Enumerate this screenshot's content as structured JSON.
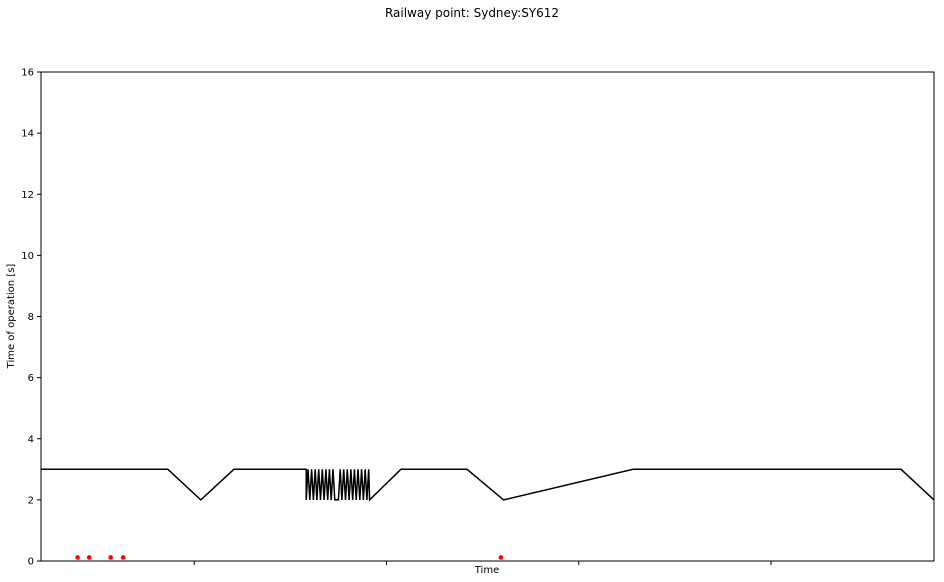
{
  "chart_data": {
    "type": "line",
    "title": "Railway point: Sydney:SY612",
    "xlabel": "Time",
    "ylabel": "Time of operation [s]",
    "ylim": [
      0,
      16
    ],
    "yticks": [
      "0",
      "2",
      "4",
      "6",
      "8",
      "10",
      "12",
      "14",
      "16"
    ],
    "xlim": [
      0,
      1
    ],
    "xticks_count": 4,
    "xtick_labels_visible": false,
    "grid": false,
    "legend": "none",
    "colors": {
      "line": "#000000",
      "markers": "#ff0000"
    },
    "series": [
      {
        "kind": "line",
        "x": [
          0.0,
          0.142,
          0.179,
          0.216,
          0.297,
          0.297,
          0.299,
          0.301,
          0.303,
          0.305,
          0.307,
          0.309,
          0.311,
          0.313,
          0.315,
          0.317,
          0.319,
          0.321,
          0.323,
          0.325,
          0.327,
          0.329,
          0.331,
          0.333,
          0.335,
          0.337,
          0.339,
          0.341,
          0.343,
          0.345,
          0.347,
          0.349,
          0.351,
          0.353,
          0.355,
          0.357,
          0.359,
          0.361,
          0.363,
          0.365,
          0.367,
          0.368,
          0.403,
          0.477,
          0.518,
          0.663,
          0.963,
          1.0
        ],
        "y": [
          3,
          3,
          2,
          3,
          3,
          2,
          3,
          2,
          3,
          2,
          3,
          2,
          3,
          2,
          3,
          2,
          3,
          2,
          3,
          2,
          3,
          2,
          2,
          2,
          3,
          2,
          3,
          2,
          3,
          2,
          3,
          2,
          3,
          2,
          3,
          2,
          3,
          2,
          3,
          2,
          3,
          2,
          3,
          3,
          2,
          3,
          3,
          2
        ]
      },
      {
        "kind": "scatter",
        "x": [
          0.041,
          0.054,
          0.078,
          0.092,
          0.515
        ],
        "y": [
          0.05,
          0.05,
          0.05,
          0.05,
          0.05
        ]
      }
    ]
  }
}
